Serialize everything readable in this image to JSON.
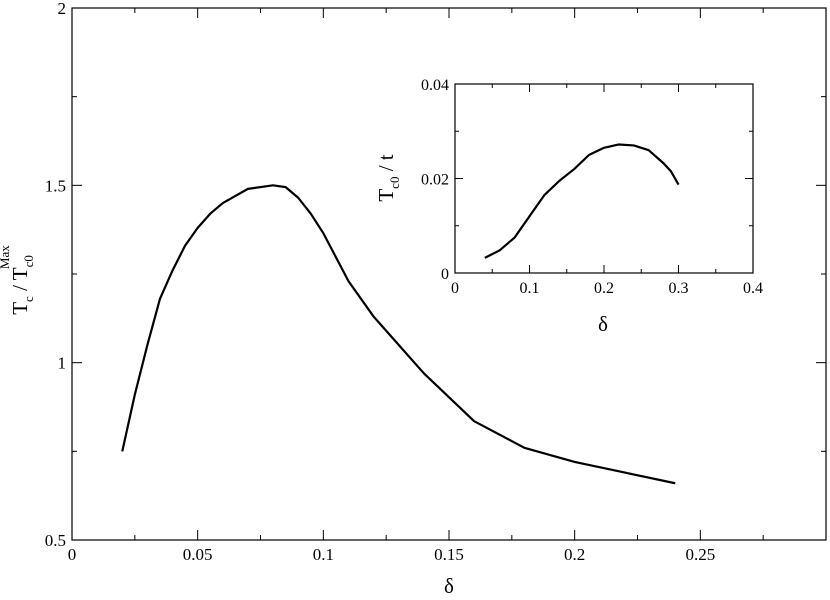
{
  "chart_data": [
    {
      "type": "line",
      "title": "",
      "xlabel": "δ",
      "ylabel": {
        "base": "T",
        "sub1": "c",
        "sep": " / ",
        "base2": "T",
        "sub2": "c0",
        "sup2": "Max"
      },
      "xlim": [
        0,
        0.3
      ],
      "ylim": [
        0.5,
        2
      ],
      "xticks": [
        0,
        0.05,
        0.1,
        0.15,
        0.2,
        0.25
      ],
      "xtick_labels": [
        "0",
        "0.05",
        "0.1",
        "0.15",
        "0.2",
        "0.25"
      ],
      "yticks": [
        0.5,
        1,
        1.5,
        2
      ],
      "ytick_labels": [
        "0.5",
        "1",
        "1.5",
        "2"
      ],
      "grid": false,
      "series": [
        {
          "x": [
            0.02,
            0.025,
            0.03,
            0.035,
            0.04,
            0.045,
            0.05,
            0.055,
            0.06,
            0.07,
            0.08,
            0.085,
            0.09,
            0.095,
            0.1,
            0.11,
            0.12,
            0.14,
            0.16,
            0.18,
            0.2,
            0.22,
            0.24
          ],
          "y": [
            0.75,
            0.91,
            1.05,
            1.18,
            1.26,
            1.33,
            1.38,
            1.42,
            1.45,
            1.49,
            1.5,
            1.495,
            1.465,
            1.42,
            1.365,
            1.23,
            1.13,
            0.97,
            0.835,
            0.76,
            0.72,
            0.69,
            0.66
          ]
        }
      ]
    },
    {
      "type": "line",
      "title": "",
      "xlabel": "δ",
      "ylabel": {
        "base": "T",
        "sub": "c0",
        "suffix": " / t"
      },
      "xlim": [
        0,
        0.4
      ],
      "ylim": [
        0,
        0.04
      ],
      "xticks": [
        0,
        0.1,
        0.2,
        0.3,
        0.4
      ],
      "xtick_labels": [
        "0",
        "0.1",
        "0.2",
        "0.3",
        "0.4"
      ],
      "yticks": [
        0,
        0.02,
        0.04
      ],
      "ytick_labels": [
        "0",
        "0.02",
        "0.04"
      ],
      "grid": false,
      "series": [
        {
          "x": [
            0.04,
            0.06,
            0.08,
            0.1,
            0.12,
            0.14,
            0.16,
            0.18,
            0.2,
            0.22,
            0.24,
            0.26,
            0.28,
            0.29,
            0.3
          ],
          "y": [
            0.0032,
            0.0048,
            0.0075,
            0.012,
            0.0165,
            0.0195,
            0.022,
            0.025,
            0.0265,
            0.0272,
            0.027,
            0.026,
            0.0232,
            0.0215,
            0.0187
          ]
        }
      ]
    }
  ]
}
